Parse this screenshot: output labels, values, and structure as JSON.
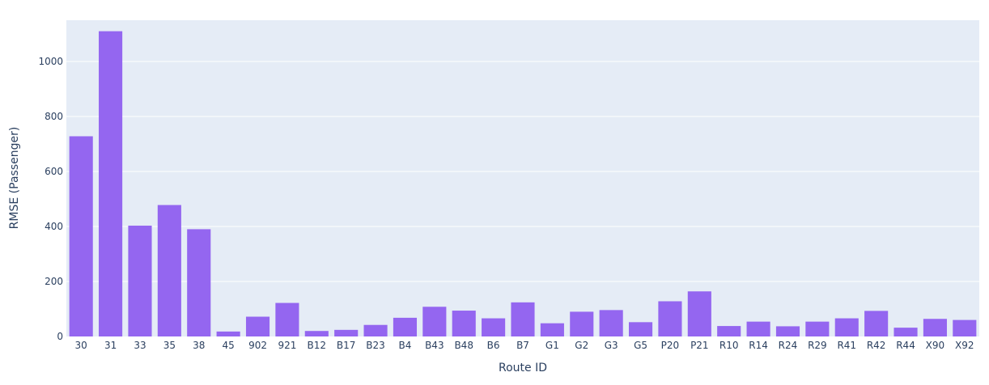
{
  "chart_data": {
    "type": "bar",
    "title": "",
    "xlabel": "Route ID",
    "ylabel": "RMSE (Passenger)",
    "ylim": [
      0,
      1150
    ],
    "yticks": [
      0,
      200,
      400,
      600,
      800,
      1000
    ],
    "grid": true,
    "bar_color": "#9466f0",
    "plot_bg": "#e5ecf6",
    "categories": [
      "30",
      "31",
      "33",
      "35",
      "38",
      "45",
      "902",
      "921",
      "B12",
      "B17",
      "B23",
      "B4",
      "B43",
      "B48",
      "B6",
      "B7",
      "G1",
      "G2",
      "G3",
      "G5",
      "P20",
      "P21",
      "R10",
      "R14",
      "R24",
      "R29",
      "R41",
      "R42",
      "R44",
      "X90",
      "X92"
    ],
    "values": [
      728,
      1110,
      403,
      478,
      390,
      18,
      72,
      122,
      20,
      24,
      42,
      68,
      108,
      94,
      66,
      124,
      48,
      90,
      96,
      52,
      128,
      164,
      38,
      54,
      37,
      54,
      66,
      93,
      32,
      64,
      60
    ]
  }
}
